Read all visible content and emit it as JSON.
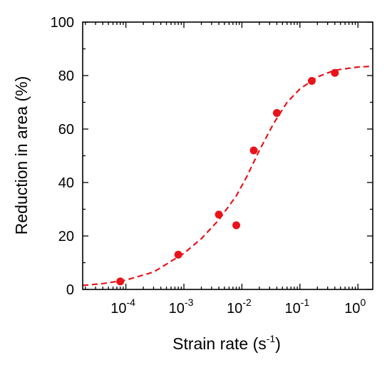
{
  "chart_data": {
    "type": "scatter",
    "xlabel": "Strain rate (s",
    "xlabel_sup": "-1",
    "xlabel_end": ")",
    "ylabel": "Reduction in area (%)",
    "x_scale": "log",
    "xlim": [
      1.8e-05,
      1.8
    ],
    "ylim": [
      0,
      100
    ],
    "x_ticks": [
      {
        "value": 0.0001,
        "base": "10",
        "exp": "-4"
      },
      {
        "value": 0.001,
        "base": "10",
        "exp": "-3"
      },
      {
        "value": 0.01,
        "base": "10",
        "exp": "-2"
      },
      {
        "value": 0.1,
        "base": "10",
        "exp": "-1"
      },
      {
        "value": 1,
        "base": "10",
        "exp": "0"
      }
    ],
    "y_ticks": [
      {
        "value": 0,
        "label": "0"
      },
      {
        "value": 20,
        "label": "20"
      },
      {
        "value": 40,
        "label": "40"
      },
      {
        "value": 60,
        "label": "60"
      },
      {
        "value": 80,
        "label": "80"
      },
      {
        "value": 100,
        "label": "100"
      }
    ],
    "grid": false,
    "series": [
      {
        "kind": "points",
        "color": "#e8141b",
        "points": [
          {
            "x": 8e-05,
            "y": 3
          },
          {
            "x": 0.0008,
            "y": 13
          },
          {
            "x": 0.004,
            "y": 28
          },
          {
            "x": 0.008,
            "y": 24
          },
          {
            "x": 0.016,
            "y": 52
          },
          {
            "x": 0.04,
            "y": 66
          },
          {
            "x": 0.16,
            "y": 78
          },
          {
            "x": 0.4,
            "y": 81
          }
        ]
      },
      {
        "kind": "fit",
        "style": "dashed",
        "color": "#e8141b",
        "points": [
          {
            "x": 1.8e-05,
            "y": 1.5
          },
          {
            "x": 4e-05,
            "y": 2.2
          },
          {
            "x": 0.0001,
            "y": 3.5
          },
          {
            "x": 0.0003,
            "y": 6.5
          },
          {
            "x": 0.001,
            "y": 13.5
          },
          {
            "x": 0.002,
            "y": 19
          },
          {
            "x": 0.004,
            "y": 26
          },
          {
            "x": 0.008,
            "y": 35
          },
          {
            "x": 0.012,
            "y": 42
          },
          {
            "x": 0.02,
            "y": 52
          },
          {
            "x": 0.035,
            "y": 62
          },
          {
            "x": 0.06,
            "y": 70
          },
          {
            "x": 0.1,
            "y": 75
          },
          {
            "x": 0.2,
            "y": 79.5
          },
          {
            "x": 0.4,
            "y": 82
          },
          {
            "x": 1,
            "y": 83.2
          },
          {
            "x": 1.8,
            "y": 83.5
          }
        ]
      }
    ]
  }
}
